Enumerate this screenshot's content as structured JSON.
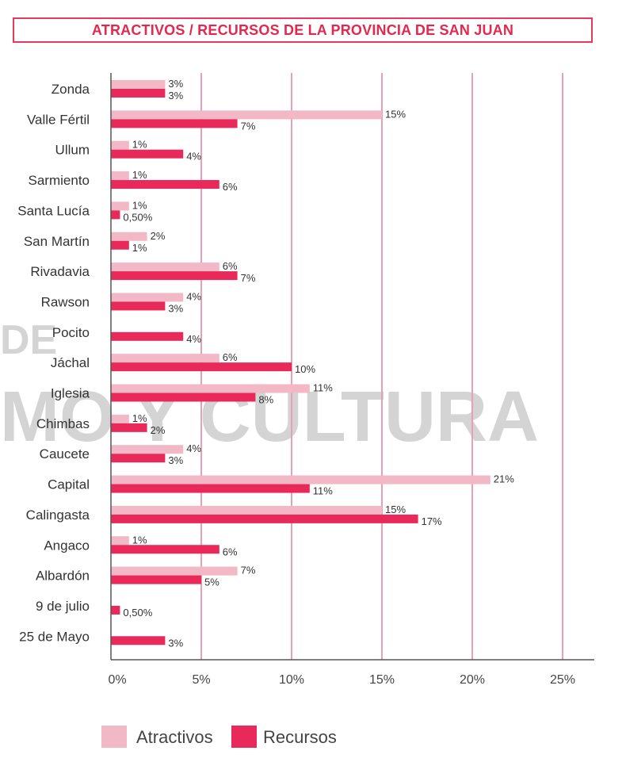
{
  "chart_data": {
    "type": "bar",
    "orientation": "horizontal",
    "title": "ATRACTIVOS / RECURSOS DE LA PROVINCIA DE SAN JUAN",
    "watermark": [
      "DE",
      "MO Y CULTURA"
    ],
    "categories": [
      "Zonda",
      "Valle Fértil",
      "Ullum",
      "Sarmiento",
      "Santa Lucía",
      "San Martín",
      "Rivadavia",
      "Rawson",
      "Pocito",
      "Jáchal",
      "Iglesia",
      "Chimbas",
      "Caucete",
      "Capital",
      "Calingasta",
      "Angaco",
      "Albardón",
      "9 de julio",
      "25 de Mayo"
    ],
    "series": [
      {
        "name": "Atractivos",
        "color": "#f2b8c6",
        "values": [
          3,
          15,
          1,
          1,
          1,
          2,
          6,
          4,
          null,
          6,
          11,
          1,
          4,
          21,
          15,
          1,
          7,
          null,
          null
        ],
        "labels": [
          "3%",
          "15%",
          "1%",
          "1%",
          "1%",
          "2%",
          "6%",
          "4%",
          "",
          "6%",
          "11%",
          "1%",
          "4%",
          "21%",
          "15%",
          "1%",
          "7%",
          "",
          ""
        ]
      },
      {
        "name": "Recursos",
        "color": "#e8295a",
        "values": [
          3,
          7,
          4,
          6,
          0.5,
          1,
          7,
          3,
          4,
          10,
          8,
          2,
          3,
          11,
          17,
          6,
          5,
          0.5,
          3
        ],
        "labels": [
          "3%",
          "7%",
          "4%",
          "6%",
          "0,50%",
          "1%",
          "7%",
          "3%",
          "4%",
          "10%",
          "8%",
          "2%",
          "3%",
          "11%",
          "17%",
          "6%",
          "5%",
          "0,50%",
          "3%"
        ]
      }
    ],
    "xlim": [
      0,
      25
    ],
    "xticks": [
      0,
      5,
      10,
      15,
      20,
      25
    ],
    "xtick_labels": [
      "0%",
      "5%",
      "10%",
      "15%",
      "20%",
      "25%"
    ],
    "grid": "vertical",
    "gridline_color": "#e8a0b4",
    "legend_position": "bottom-left"
  }
}
